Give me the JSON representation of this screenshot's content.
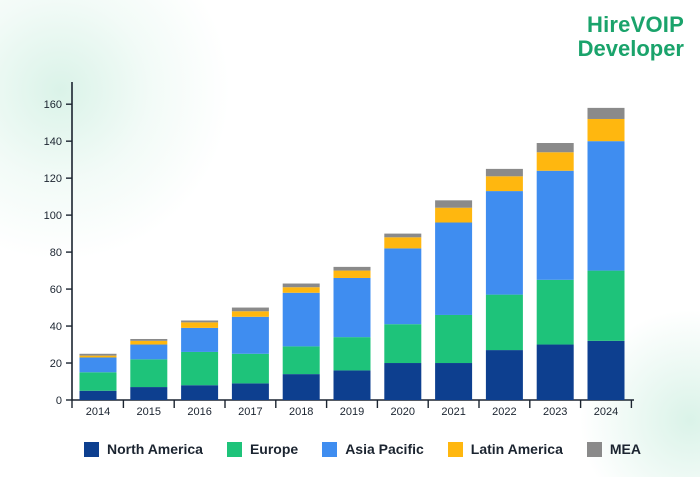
{
  "logo": {
    "line1": "HireVOIP",
    "line2": "Developer",
    "color": "#1aa36b"
  },
  "chart_data": {
    "type": "bar",
    "stacked": true,
    "categories": [
      "2014",
      "2015",
      "2016",
      "2017",
      "2018",
      "2019",
      "2020",
      "2021",
      "2022",
      "2023",
      "2024"
    ],
    "series": [
      {
        "name": "North America",
        "color": "#0d3f8f",
        "values": [
          5,
          7,
          8,
          9,
          14,
          16,
          20,
          20,
          27,
          30,
          32
        ]
      },
      {
        "name": "Europe",
        "color": "#1ec37a",
        "values": [
          10,
          15,
          18,
          16,
          15,
          18,
          21,
          26,
          30,
          35,
          38
        ]
      },
      {
        "name": "Asia Pacific",
        "color": "#3f8df0",
        "values": [
          8,
          8,
          13,
          20,
          29,
          32,
          41,
          50,
          56,
          59,
          70
        ]
      },
      {
        "name": "Latin America",
        "color": "#ffb70f",
        "values": [
          1,
          2,
          3,
          3,
          3,
          4,
          6,
          8,
          8,
          10,
          12
        ]
      },
      {
        "name": "MEA",
        "color": "#8a8a8a",
        "values": [
          1,
          1,
          1,
          2,
          2,
          2,
          2,
          4,
          4,
          5,
          6
        ]
      }
    ],
    "y_ticks": [
      0,
      20,
      40,
      60,
      80,
      100,
      120,
      140,
      160
    ],
    "ylim": [
      0,
      172
    ],
    "title": "",
    "xlabel": "",
    "ylabel": "",
    "grid": false,
    "legend_position": "bottom"
  }
}
